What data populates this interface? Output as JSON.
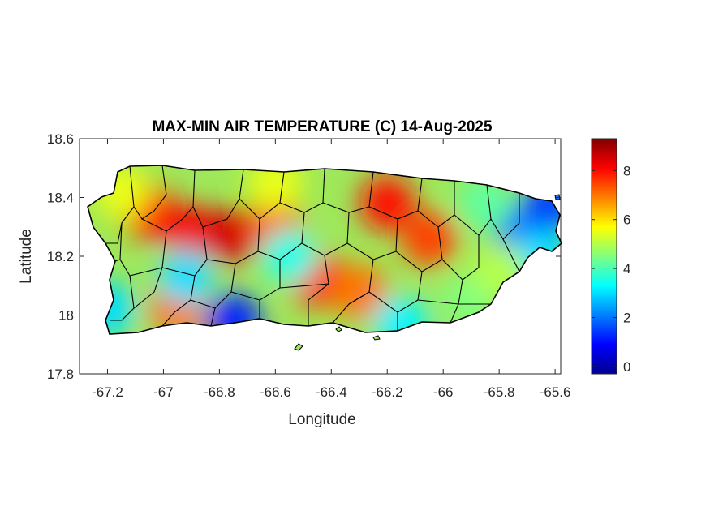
{
  "chart_data": {
    "type": "heatmap",
    "title": "MAX-MIN AIR TEMPERATURE (C) 14-Aug-2025",
    "xlabel": "Longitude",
    "ylabel": "Latitude",
    "xlim": [
      -67.3,
      -65.58
    ],
    "ylim": [
      17.8,
      18.6
    ],
    "xticks": [
      -67.2,
      -67,
      -66.8,
      -66.6,
      -66.4,
      -66.2,
      -66,
      -65.8,
      -65.6
    ],
    "xtick_labels": [
      "-67.2",
      "-67",
      "-66.8",
      "-66.6",
      "-66.4",
      "-66.2",
      "-66",
      "-65.8",
      "-65.6"
    ],
    "yticks": [
      17.8,
      18,
      18.2,
      18.4,
      18.6
    ],
    "ytick_labels": [
      "17.8",
      "18",
      "18.2",
      "18.4",
      "18.6"
    ],
    "colorbar": {
      "colormap": "jet",
      "clim": [
        -0.3,
        9.3
      ],
      "ticks": [
        0,
        2,
        4,
        6,
        8
      ],
      "tick_labels": [
        "0",
        "2",
        "4",
        "6",
        "8"
      ]
    },
    "field_samples": [
      {
        "lon": -67.05,
        "lat": 18.35,
        "value": 7.8
      },
      {
        "lon": -66.9,
        "lat": 18.28,
        "value": 8.2
      },
      {
        "lon": -66.75,
        "lat": 18.27,
        "value": 8.5
      },
      {
        "lon": -66.6,
        "lat": 18.3,
        "value": 7.2
      },
      {
        "lon": -66.2,
        "lat": 18.38,
        "value": 8.0
      },
      {
        "lon": -66.05,
        "lat": 18.26,
        "value": 7.5
      },
      {
        "lon": -66.45,
        "lat": 18.12,
        "value": 7.6
      },
      {
        "lon": -66.3,
        "lat": 18.08,
        "value": 7.0
      },
      {
        "lon": -66.95,
        "lat": 18.02,
        "value": 7.0
      },
      {
        "lon": -66.92,
        "lat": 18.13,
        "value": 3.0
      },
      {
        "lon": -67.2,
        "lat": 18.02,
        "value": 3.0
      },
      {
        "lon": -66.75,
        "lat": 17.98,
        "value": 1.2
      },
      {
        "lon": -66.15,
        "lat": 17.97,
        "value": 3.2
      },
      {
        "lon": -65.72,
        "lat": 18.28,
        "value": 1.8
      },
      {
        "lon": -65.62,
        "lat": 18.37,
        "value": 1.5
      },
      {
        "lon": -65.65,
        "lat": 18.2,
        "value": 3.0
      },
      {
        "lon": -65.85,
        "lat": 18.38,
        "value": 4.2
      },
      {
        "lon": -65.9,
        "lat": 18.05,
        "value": 4.5
      },
      {
        "lon": -66.55,
        "lat": 18.2,
        "value": 3.5
      },
      {
        "lon": -67.15,
        "lat": 18.42,
        "value": 5.5
      },
      {
        "lon": -66.6,
        "lat": 18.45,
        "value": 5.5
      },
      {
        "lon": -65.8,
        "lat": 18.15,
        "value": 5.0
      }
    ]
  }
}
